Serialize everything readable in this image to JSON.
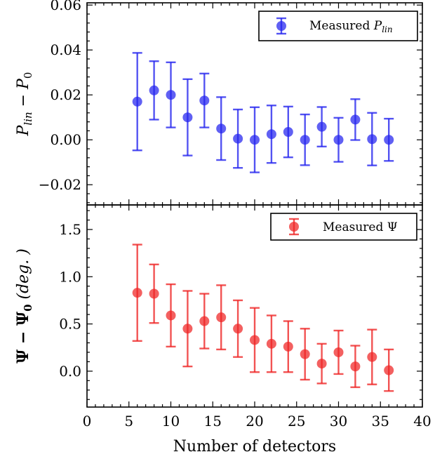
{
  "chart_data": [
    {
      "type": "scatter",
      "style": "errorbar",
      "color": "#2222ee",
      "x": [
        6,
        8,
        10,
        12,
        14,
        16,
        18,
        20,
        22,
        24,
        26,
        28,
        30,
        32,
        34,
        36
      ],
      "y": [
        0.017,
        0.022,
        0.02,
        0.01,
        0.0175,
        0.005,
        0.0005,
        0.0,
        0.0025,
        0.0035,
        0.0,
        0.0058,
        0.0,
        0.009,
        0.0003,
        0.0
      ],
      "yerr": [
        0.0217,
        0.013,
        0.0145,
        0.017,
        0.012,
        0.014,
        0.013,
        0.0145,
        0.0128,
        0.0113,
        0.0113,
        0.0088,
        0.0098,
        0.0091,
        0.0117,
        0.0094
      ],
      "series": [
        {
          "name": "Measured ",
          "name_sub": "lin"
        }
      ],
      "ylabel": {
        "main": "P",
        "sub": "lin",
        "minus": " − ",
        "main2": "P",
        "sub2": "0"
      },
      "xlim": [
        0,
        40
      ],
      "ylim": [
        -0.029,
        0.061
      ],
      "yticks": [
        -0.02,
        0.0,
        0.02,
        0.04,
        0.06
      ],
      "ytick_labels": [
        "−0.02",
        "0.00",
        "0.02",
        "0.04",
        "0.06"
      ],
      "legend_position": "top-right",
      "grid": false
    },
    {
      "type": "scatter",
      "style": "errorbar",
      "color": "#ee2222",
      "x": [
        6,
        8,
        10,
        12,
        14,
        16,
        18,
        20,
        22,
        24,
        26,
        28,
        30,
        32,
        34,
        36
      ],
      "y": [
        0.83,
        0.82,
        0.59,
        0.45,
        0.53,
        0.57,
        0.45,
        0.33,
        0.29,
        0.26,
        0.18,
        0.08,
        0.2,
        0.05,
        0.15,
        0.01
      ],
      "yerr": [
        0.51,
        0.31,
        0.33,
        0.4,
        0.29,
        0.34,
        0.3,
        0.34,
        0.3,
        0.27,
        0.27,
        0.21,
        0.23,
        0.22,
        0.29,
        0.22
      ],
      "series": [
        {
          "name": "Measured Ψ"
        }
      ],
      "xlabel": "Number of detectors",
      "ylabel": {
        "main": "Ψ − Ψ",
        "sub": "0",
        "unit": " (deg. )"
      },
      "xlim": [
        0,
        40
      ],
      "ylim": [
        -0.38,
        1.76
      ],
      "xticks": [
        0,
        5,
        10,
        15,
        20,
        25,
        30,
        35,
        40
      ],
      "xtick_labels": [
        "0",
        "5",
        "10",
        "15",
        "20",
        "25",
        "30",
        "35",
        "40"
      ],
      "yticks": [
        0.0,
        0.5,
        1.0,
        1.5
      ],
      "ytick_labels": [
        "0.0",
        "0.5",
        "1.0",
        "1.5"
      ],
      "legend_position": "top-right",
      "grid": false
    }
  ]
}
